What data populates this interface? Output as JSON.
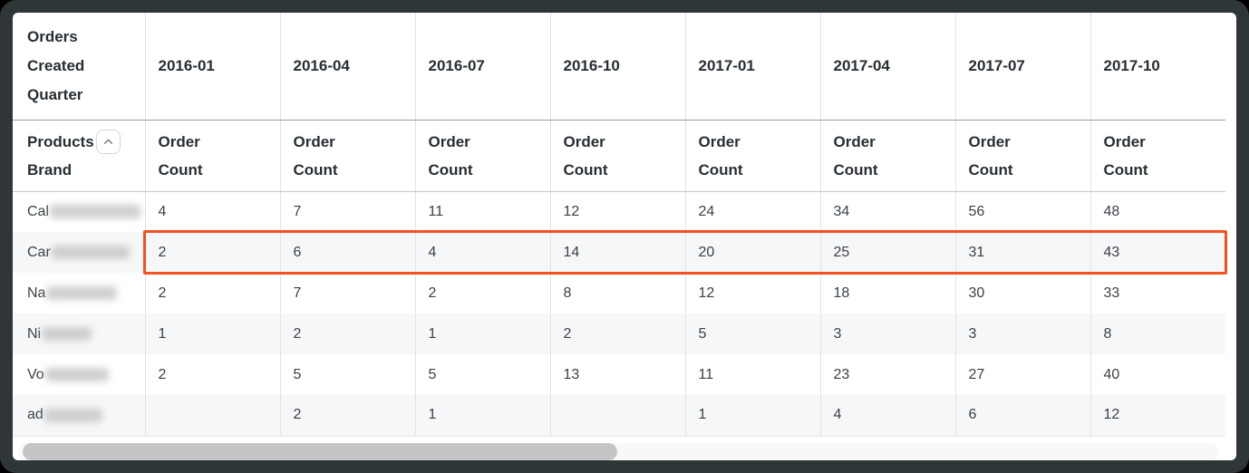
{
  "window": {
    "frame_color": "#2f3638",
    "background_color": "#000000"
  },
  "table": {
    "corner_label": "Orders Created Quarter",
    "row_dimension_line1": "Products",
    "row_dimension_line2": "Brand",
    "sort_icon": "chevron-up-icon",
    "columns": [
      "2016-01",
      "2016-04",
      "2016-07",
      "2016-10",
      "2017-01",
      "2017-04",
      "2017-07",
      "2017-10"
    ],
    "measure_label": "Order Count",
    "rows": [
      {
        "brand_prefix": "Cal",
        "redacted": true,
        "redacted_width": 100,
        "highlighted": false,
        "values": [
          "4",
          "7",
          "11",
          "12",
          "24",
          "34",
          "56",
          "48"
        ]
      },
      {
        "brand_prefix": "Car",
        "redacted": true,
        "redacted_width": 86,
        "highlighted": true,
        "values": [
          "2",
          "6",
          "4",
          "14",
          "20",
          "25",
          "31",
          "43"
        ]
      },
      {
        "brand_prefix": "Na",
        "redacted": true,
        "redacted_width": 78,
        "highlighted": false,
        "values": [
          "2",
          "7",
          "2",
          "8",
          "12",
          "18",
          "30",
          "33"
        ]
      },
      {
        "brand_prefix": "Ni",
        "redacted": true,
        "redacted_width": 55,
        "highlighted": false,
        "values": [
          "1",
          "2",
          "1",
          "2",
          "5",
          "3",
          "3",
          "8"
        ]
      },
      {
        "brand_prefix": "Vo",
        "redacted": true,
        "redacted_width": 70,
        "highlighted": false,
        "values": [
          "2",
          "5",
          "5",
          "13",
          "11",
          "23",
          "27",
          "40"
        ]
      },
      {
        "brand_prefix": "ad",
        "redacted": true,
        "redacted_width": 64,
        "highlighted": false,
        "values": [
          "",
          "2",
          "1",
          "",
          "1",
          "4",
          "6",
          "12"
        ]
      }
    ],
    "highlight_color": "#f4511e",
    "stripe_color": "#f6f7f8",
    "scrollbar": {
      "orientation": "horizontal",
      "thumb_left_ratio": 0.004,
      "thumb_width_ratio": 0.495
    }
  }
}
